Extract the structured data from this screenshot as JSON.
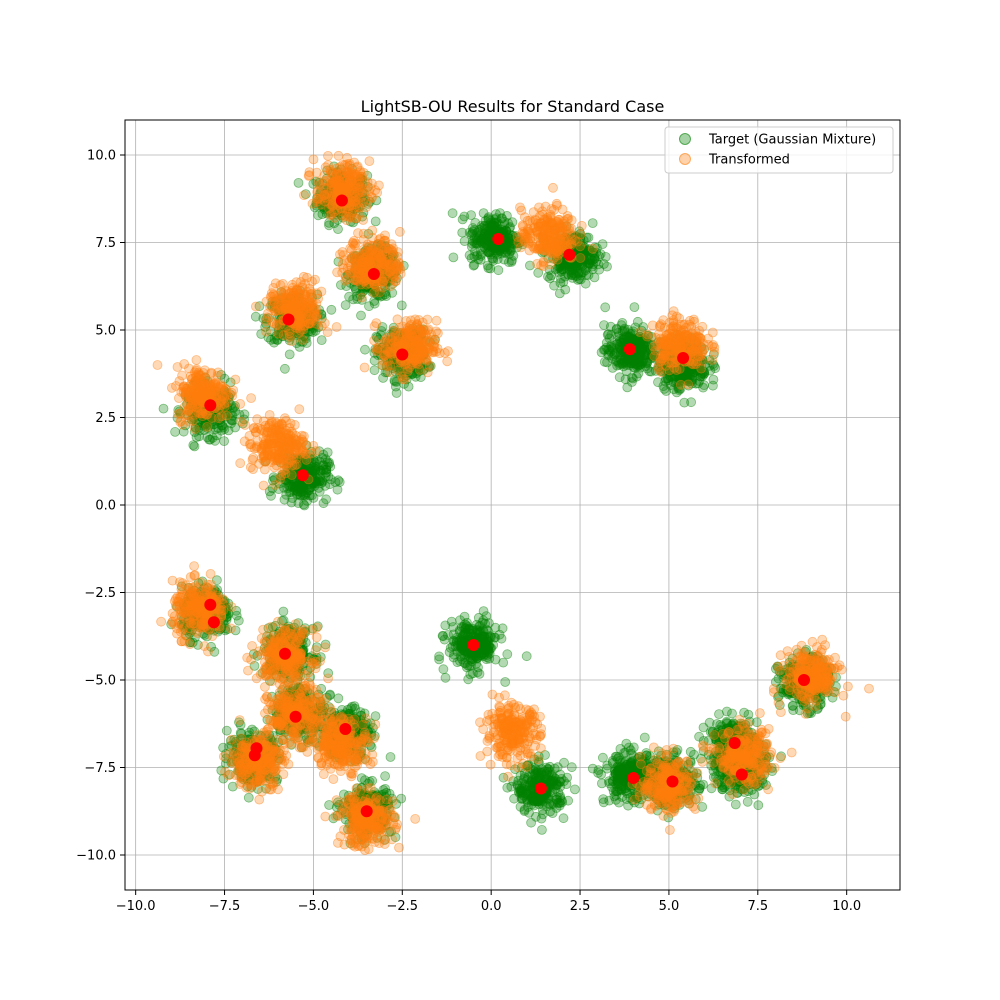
{
  "chart_data": {
    "type": "scatter",
    "title": "LightSB-OU Results for Standard Case",
    "xlabel": "",
    "ylabel": "",
    "xlim": [
      -10.3,
      11.5
    ],
    "ylim": [
      -11.0,
      11.0
    ],
    "xticks": [
      -10.0,
      -7.5,
      -5.0,
      -2.5,
      0.0,
      2.5,
      5.0,
      7.5,
      10.0
    ],
    "xtick_labels": [
      "−10.0",
      "−7.5",
      "−5.0",
      "−2.5",
      "0.0",
      "2.5",
      "5.0",
      "7.5",
      "10.0"
    ],
    "yticks": [
      -10.0,
      -7.5,
      -5.0,
      -2.5,
      0.0,
      2.5,
      5.0,
      7.5,
      10.0
    ],
    "ytick_labels": [
      "−10.0",
      "−7.5",
      "−5.0",
      "−2.5",
      "0.0",
      "2.5",
      "5.0",
      "7.5",
      "10.0"
    ],
    "grid": true,
    "legend_position": "top-right",
    "colors": {
      "target": "#008000",
      "transformed": "#ff7f0e",
      "centers": "#ff0000"
    },
    "series": [
      {
        "name": "Target (Gaussian Mixture)",
        "cluster_centers": [
          [
            -4.2,
            8.8
          ],
          [
            -3.3,
            6.6
          ],
          [
            -5.6,
            5.3
          ],
          [
            -2.5,
            4.3
          ],
          [
            -7.9,
            2.7
          ],
          [
            -5.3,
            0.8
          ],
          [
            0.1,
            7.6
          ],
          [
            2.3,
            7.1
          ],
          [
            3.9,
            4.4
          ],
          [
            5.4,
            4.0
          ],
          [
            -8.0,
            -3.1
          ],
          [
            -5.7,
            -4.2
          ],
          [
            -0.5,
            -4.0
          ],
          [
            8.8,
            -5.1
          ],
          [
            -5.4,
            -5.9
          ],
          [
            -4.1,
            -6.5
          ],
          [
            -6.7,
            -7.2
          ],
          [
            1.4,
            -8.1
          ],
          [
            3.9,
            -7.8
          ],
          [
            5.1,
            -7.9
          ],
          [
            6.8,
            -6.8
          ],
          [
            7.0,
            -7.6
          ],
          [
            -3.5,
            -8.7
          ]
        ],
        "cluster_spread": 0.35,
        "points_per_cluster": 260
      },
      {
        "name": "Transformed",
        "cluster_centers": [
          [
            -4.2,
            9.0
          ],
          [
            -3.3,
            6.9
          ],
          [
            -5.5,
            5.6
          ],
          [
            -2.3,
            4.5
          ],
          [
            -8.1,
            3.2
          ],
          [
            -6.0,
            1.7
          ],
          [
            1.6,
            7.7
          ],
          [
            5.3,
            4.6
          ],
          [
            -8.2,
            -3.0
          ],
          [
            -5.8,
            -4.3
          ],
          [
            9.0,
            -4.9
          ],
          [
            -5.5,
            -6.0
          ],
          [
            -4.2,
            -6.8
          ],
          [
            -6.6,
            -7.3
          ],
          [
            0.6,
            -6.5
          ],
          [
            5.0,
            -8.0
          ],
          [
            7.1,
            -7.2
          ],
          [
            -3.5,
            -9.0
          ]
        ],
        "cluster_spread": 0.38,
        "points_per_cluster": 240
      }
    ],
    "centers": [
      [
        -4.2,
        8.7
      ],
      [
        -3.3,
        6.6
      ],
      [
        -5.7,
        5.3
      ],
      [
        -2.5,
        4.3
      ],
      [
        -7.9,
        2.85
      ],
      [
        -5.3,
        0.85
      ],
      [
        0.2,
        7.6
      ],
      [
        2.2,
        7.15
      ],
      [
        3.9,
        4.45
      ],
      [
        5.4,
        4.2
      ],
      [
        -7.9,
        -2.85
      ],
      [
        -7.8,
        -3.35
      ],
      [
        -5.8,
        -4.25
      ],
      [
        -0.5,
        -4.0
      ],
      [
        8.8,
        -5.0
      ],
      [
        -5.5,
        -6.05
      ],
      [
        -4.1,
        -6.4
      ],
      [
        -6.6,
        -6.95
      ],
      [
        -6.65,
        -7.15
      ],
      [
        1.4,
        -8.1
      ],
      [
        4.0,
        -7.8
      ],
      [
        5.1,
        -7.9
      ],
      [
        6.85,
        -6.8
      ],
      [
        7.05,
        -7.7
      ],
      [
        -3.5,
        -8.75
      ]
    ],
    "legend": [
      {
        "label": "Target (Gaussian Mixture)",
        "color": "#008000"
      },
      {
        "label": "Transformed",
        "color": "#ff7f0e"
      }
    ]
  }
}
